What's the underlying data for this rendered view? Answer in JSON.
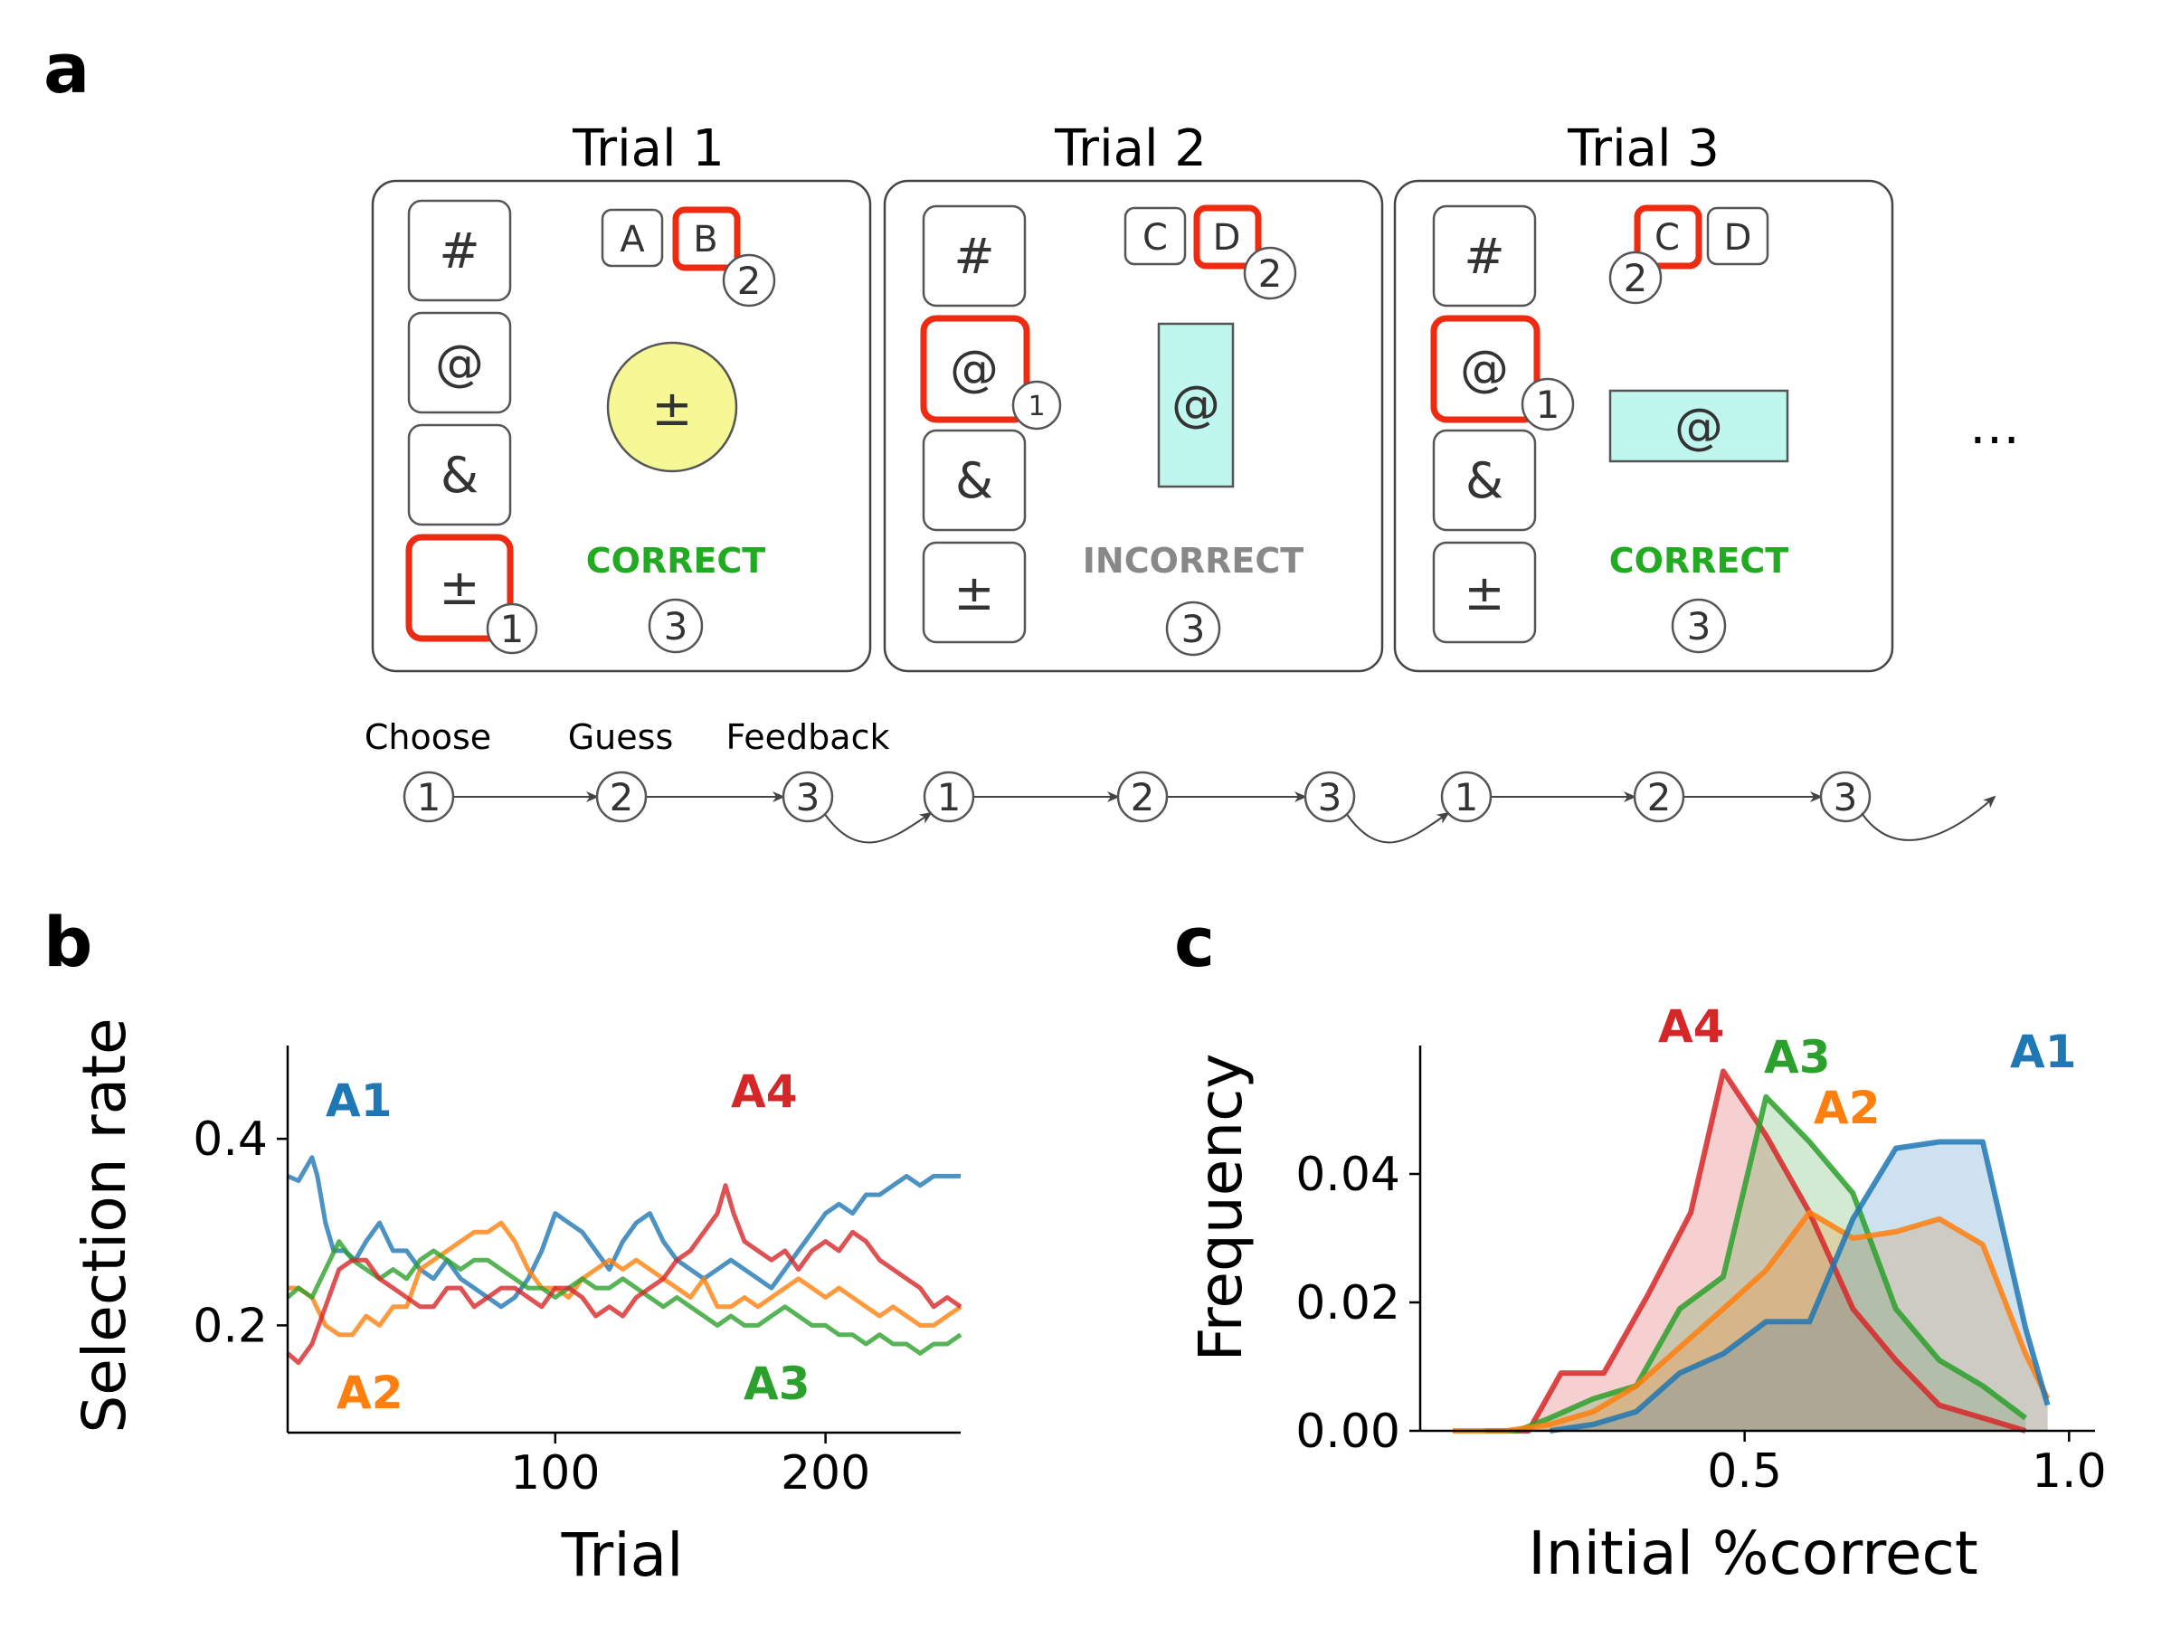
{
  "panel_labels": {
    "a": "a",
    "b": "b",
    "c": "c"
  },
  "colors": {
    "A1": "#1f77b4",
    "A2": "#ff7f0e",
    "A3": "#2ca02c",
    "A4": "#d62728",
    "selection": "#ee2a10",
    "correct": "#22aa22",
    "incorrect": "#888888",
    "stimulus_circle": "#f6f795",
    "stimulus_rect": "#bff7ee"
  },
  "task": {
    "trials": [
      {
        "title": "Trial 1",
        "options": [
          "#",
          "@",
          "&",
          "±"
        ],
        "selected_option": 3,
        "option_badge": "1",
        "guess_letters": [
          "A",
          "B"
        ],
        "selected_guess": 1,
        "guess_badge": "2",
        "stimulus_shape": "circle",
        "stimulus_symbol": "±",
        "feedback": "CORRECT",
        "feedback_badge": "3"
      },
      {
        "title": "Trial 2",
        "options": [
          "#",
          "@",
          "&",
          "±"
        ],
        "selected_option": 1,
        "option_badge": "1",
        "guess_letters": [
          "C",
          "D"
        ],
        "selected_guess": 1,
        "guess_badge": "2",
        "stimulus_shape": "tall-rectangle",
        "stimulus_symbol": "@",
        "feedback": "INCORRECT",
        "feedback_badge": "3"
      },
      {
        "title": "Trial 3",
        "options": [
          "#",
          "@",
          "&",
          "±"
        ],
        "selected_option": 1,
        "option_badge": "1",
        "guess_letters": [
          "C",
          "D"
        ],
        "selected_guess": 0,
        "guess_badge": "2",
        "stimulus_shape": "wide-rectangle",
        "stimulus_symbol": "@",
        "feedback": "CORRECT",
        "feedback_badge": "3"
      }
    ],
    "ellipsis": "…",
    "step_labels": [
      "Choose",
      "Guess",
      "Feedback"
    ],
    "step_numbers": [
      "1",
      "2",
      "3"
    ]
  },
  "chart_data": [
    {
      "type": "line",
      "panel": "b",
      "xlabel": "Trial",
      "ylabel": "Selection rate",
      "xlim": [
        1,
        250
      ],
      "ylim": [
        0.085,
        0.5
      ],
      "xticks": [
        100,
        200
      ],
      "yticks": [
        0.2,
        0.4
      ],
      "xtick_labels": [
        "100",
        "200"
      ],
      "ytick_labels": [
        "0.2",
        "0.4"
      ],
      "series": [
        {
          "name": "A1",
          "x": [
            1,
            5,
            8,
            10,
            12,
            15,
            18,
            22,
            26,
            30,
            35,
            40,
            45,
            50,
            55,
            60,
            65,
            70,
            75,
            80,
            85,
            90,
            95,
            100,
            105,
            110,
            115,
            120,
            125,
            130,
            135,
            140,
            145,
            150,
            155,
            160,
            165,
            170,
            175,
            180,
            185,
            190,
            195,
            200,
            205,
            210,
            215,
            220,
            225,
            230,
            235,
            240,
            245,
            250
          ],
          "y": [
            0.36,
            0.355,
            0.37,
            0.38,
            0.36,
            0.31,
            0.28,
            0.28,
            0.27,
            0.29,
            0.31,
            0.28,
            0.28,
            0.26,
            0.25,
            0.27,
            0.25,
            0.24,
            0.23,
            0.22,
            0.23,
            0.25,
            0.28,
            0.32,
            0.31,
            0.3,
            0.28,
            0.26,
            0.29,
            0.31,
            0.32,
            0.29,
            0.27,
            0.26,
            0.25,
            0.26,
            0.27,
            0.26,
            0.25,
            0.24,
            0.26,
            0.28,
            0.3,
            0.32,
            0.33,
            0.32,
            0.34,
            0.34,
            0.35,
            0.36,
            0.35,
            0.36,
            0.36,
            0.36
          ]
        },
        {
          "name": "A2",
          "x": [
            1,
            5,
            10,
            15,
            20,
            25,
            30,
            35,
            40,
            45,
            50,
            55,
            60,
            65,
            70,
            75,
            80,
            85,
            90,
            95,
            100,
            105,
            110,
            115,
            120,
            125,
            130,
            135,
            140,
            145,
            150,
            155,
            160,
            165,
            170,
            175,
            180,
            185,
            190,
            195,
            200,
            205,
            210,
            215,
            220,
            225,
            230,
            235,
            240,
            245,
            250
          ],
          "y": [
            0.24,
            0.24,
            0.23,
            0.2,
            0.19,
            0.19,
            0.21,
            0.2,
            0.22,
            0.22,
            0.26,
            0.27,
            0.28,
            0.29,
            0.3,
            0.3,
            0.31,
            0.29,
            0.26,
            0.24,
            0.24,
            0.23,
            0.25,
            0.26,
            0.27,
            0.26,
            0.27,
            0.26,
            0.25,
            0.24,
            0.23,
            0.25,
            0.22,
            0.22,
            0.23,
            0.22,
            0.23,
            0.24,
            0.25,
            0.24,
            0.23,
            0.24,
            0.23,
            0.22,
            0.21,
            0.22,
            0.21,
            0.2,
            0.2,
            0.21,
            0.22
          ]
        },
        {
          "name": "A3",
          "x": [
            1,
            5,
            10,
            15,
            20,
            25,
            30,
            35,
            40,
            45,
            50,
            55,
            60,
            65,
            70,
            75,
            80,
            85,
            90,
            95,
            100,
            105,
            110,
            115,
            120,
            125,
            130,
            135,
            140,
            145,
            150,
            155,
            160,
            165,
            170,
            175,
            180,
            185,
            190,
            195,
            200,
            205,
            210,
            215,
            220,
            225,
            230,
            235,
            240,
            245,
            250
          ],
          "y": [
            0.23,
            0.24,
            0.23,
            0.26,
            0.29,
            0.27,
            0.26,
            0.25,
            0.26,
            0.25,
            0.27,
            0.28,
            0.27,
            0.26,
            0.27,
            0.27,
            0.26,
            0.25,
            0.24,
            0.24,
            0.23,
            0.24,
            0.25,
            0.24,
            0.24,
            0.25,
            0.24,
            0.23,
            0.22,
            0.23,
            0.22,
            0.21,
            0.2,
            0.21,
            0.2,
            0.2,
            0.21,
            0.22,
            0.21,
            0.2,
            0.2,
            0.19,
            0.19,
            0.18,
            0.19,
            0.18,
            0.18,
            0.17,
            0.18,
            0.18,
            0.19
          ]
        },
        {
          "name": "A4",
          "x": [
            1,
            5,
            10,
            15,
            20,
            25,
            30,
            35,
            40,
            45,
            50,
            55,
            60,
            65,
            70,
            75,
            80,
            85,
            90,
            95,
            100,
            105,
            110,
            115,
            120,
            125,
            130,
            135,
            140,
            145,
            150,
            155,
            160,
            163,
            166,
            170,
            175,
            180,
            185,
            190,
            195,
            200,
            205,
            210,
            215,
            220,
            225,
            230,
            235,
            240,
            245,
            250
          ],
          "y": [
            0.17,
            0.16,
            0.18,
            0.22,
            0.26,
            0.27,
            0.27,
            0.25,
            0.24,
            0.23,
            0.22,
            0.22,
            0.24,
            0.24,
            0.22,
            0.23,
            0.24,
            0.24,
            0.23,
            0.22,
            0.24,
            0.24,
            0.23,
            0.21,
            0.22,
            0.21,
            0.23,
            0.24,
            0.25,
            0.27,
            0.28,
            0.3,
            0.32,
            0.35,
            0.32,
            0.29,
            0.28,
            0.27,
            0.28,
            0.26,
            0.28,
            0.29,
            0.28,
            0.3,
            0.29,
            0.27,
            0.26,
            0.25,
            0.24,
            0.22,
            0.23,
            0.22
          ]
        }
      ]
    },
    {
      "type": "area",
      "panel": "c",
      "xlabel": "Initial %correct",
      "ylabel": "Frequency",
      "xlim": [
        0.0,
        1.04
      ],
      "ylim": [
        0,
        0.06
      ],
      "xticks": [
        0.5,
        1.0
      ],
      "yticks": [
        0.0,
        0.02,
        0.04
      ],
      "xtick_labels": [
        "0.5",
        "1.0"
      ],
      "ytick_labels": [
        "0.00",
        "0.02",
        "0.04"
      ],
      "series": [
        {
          "name": "A4",
          "x": [
            0.1,
            0.167,
            0.217,
            0.283,
            0.35,
            0.417,
            0.467,
            0.533,
            0.6,
            0.667,
            0.733,
            0.8,
            0.867,
            0.933
          ],
          "y": [
            0,
            0,
            0.009,
            0.009,
            0.021,
            0.034,
            0.056,
            0.046,
            0.034,
            0.019,
            0.011,
            0.004,
            0.002,
            0
          ]
        },
        {
          "name": "A3",
          "x": [
            0.1,
            0.15,
            0.2,
            0.267,
            0.333,
            0.4,
            0.467,
            0.533,
            0.6,
            0.667,
            0.733,
            0.8,
            0.867,
            0.933
          ],
          "y": [
            0,
            0,
            0.002,
            0.005,
            0.007,
            0.019,
            0.024,
            0.052,
            0.045,
            0.037,
            0.019,
            0.011,
            0.007,
            0.002
          ]
        },
        {
          "name": "A2",
          "x": [
            0.05,
            0.133,
            0.2,
            0.267,
            0.333,
            0.4,
            0.467,
            0.533,
            0.6,
            0.667,
            0.733,
            0.8,
            0.867,
            0.933,
            0.967
          ],
          "y": [
            0,
            0,
            0.001,
            0.003,
            0.007,
            0.013,
            0.019,
            0.025,
            0.034,
            0.03,
            0.031,
            0.033,
            0.029,
            0.012,
            0.005
          ]
        },
        {
          "name": "A1",
          "x": [
            0.2,
            0.267,
            0.333,
            0.4,
            0.467,
            0.533,
            0.6,
            0.667,
            0.733,
            0.8,
            0.867,
            0.933,
            0.967
          ],
          "y": [
            0,
            0.001,
            0.003,
            0.009,
            0.012,
            0.017,
            0.017,
            0.033,
            0.044,
            0.045,
            0.045,
            0.016,
            0.004
          ]
        }
      ]
    }
  ]
}
